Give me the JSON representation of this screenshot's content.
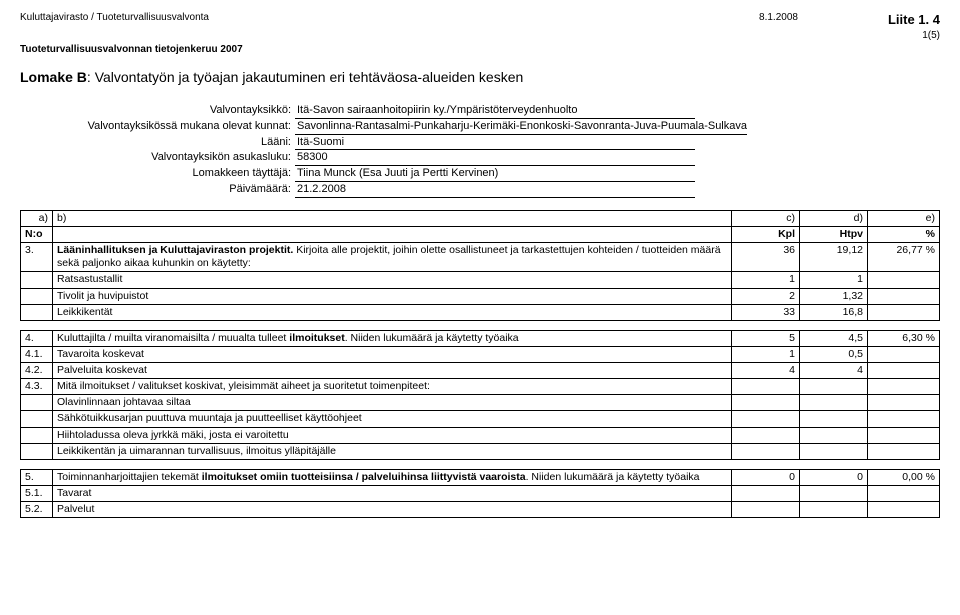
{
  "header": {
    "agency": "Kuluttajavirasto / Tuoteturvallisuusvalvonta",
    "subtitle": "Tuoteturvallisuusvalvonnan tietojenkeruu 2007",
    "date": "8.1.2008",
    "liite": "Liite 1. 4",
    "page": "1(5)"
  },
  "title": {
    "prefix": "Lomake B",
    "rest": ": Valvontatyön ja työajan jakautuminen eri tehtäväosa-alueiden kesken"
  },
  "meta": {
    "rows": [
      {
        "label": "Valvontayksikkö:",
        "value": "Itä-Savon sairaanhoitopiirin ky./Ympäristöterveydenhuolto"
      },
      {
        "label": "Valvontayksikössä mukana olevat kunnat:",
        "value": "Savonlinna-Rantasalmi-Punkaharju-Kerimäki-Enonkoski-Savonranta-Juva-Puumala-Sulkava"
      },
      {
        "label": "Lääni:",
        "value": "Itä-Suomi"
      },
      {
        "label": "Valvontayksikön asukasluku:",
        "value": "58300"
      },
      {
        "label": "Lomakkeen täyttäjä:",
        "value": "Tiina Munck (Esa Juuti ja Pertti Kervinen)"
      },
      {
        "label": "Päivämäärä:",
        "value": "21.2.2008"
      }
    ]
  },
  "table": {
    "head": {
      "a": "a)",
      "b": "b)",
      "c": "c)",
      "d": "d)",
      "e": "e)",
      "no": "N:o",
      "kpl": "Kpl",
      "htpv": "Htpv",
      "pct": "%"
    },
    "section3": {
      "no": "3.",
      "title_bold": "Lääninhallituksen ja Kuluttajaviraston projektit.",
      "title_rest": " Kirjoita alle projektit, joihin olette osallistuneet ja tarkastettujen kohteiden / tuotteiden määrä sekä paljonko aikaa kuhunkin on käytetty:",
      "kpl": "36",
      "htpv": "19,12",
      "pct": "26,77 %",
      "rows": [
        {
          "label": "Ratsastustallit",
          "kpl": "1",
          "htpv": "1"
        },
        {
          "label": "Tivolit ja huvipuistot",
          "kpl": "2",
          "htpv": "1,32"
        },
        {
          "label": "Leikkikentät",
          "kpl": "33",
          "htpv": "16,8"
        }
      ]
    },
    "section4": {
      "no": "4.",
      "title_pre": "Kuluttajilta / muilta viranomaisilta / muualta tulleet ",
      "title_bold": "ilmoitukset",
      "title_post": ". Niiden lukumäärä ja käytetty työaika",
      "kpl": "5",
      "htpv": "4,5",
      "pct": "6,30 %",
      "rows": [
        {
          "no": "4.1.",
          "label": "Tavaroita koskevat",
          "kpl": "1",
          "htpv": "0,5"
        },
        {
          "no": "4.2.",
          "label": "Palveluita koskevat",
          "kpl": "4",
          "htpv": "4"
        }
      ],
      "sub43": {
        "no": "4.3.",
        "label": "Mitä ilmoitukset / valitukset koskivat, yleisimmät aiheet ja suoritetut toimenpiteet:",
        "items": [
          "Olavinlinnaan johtavaa siltaa",
          "Sähkötuikkusarjan puuttuva muuntaja ja puutteelliset käyttöohjeet",
          "Hiihtoladussa oleva jyrkkä mäki, josta ei varoitettu",
          "Leikkikentän ja uimarannan turvallisuus, ilmoitus ylläpitäjälle"
        ]
      }
    },
    "section5": {
      "no": "5.",
      "title_pre": "Toiminnanharjoittajien tekemät ",
      "title_bold": "ilmoitukset omiin tuotteisiinsa / palveluihinsa liittyvistä vaaroista",
      "title_post": ". Niiden lukumäärä ja käytetty työaika",
      "kpl": "0",
      "htpv": "0",
      "pct": "0,00 %",
      "rows": [
        {
          "no": "5.1.",
          "label": "Tavarat"
        },
        {
          "no": "5.2.",
          "label": "Palvelut"
        }
      ]
    }
  }
}
